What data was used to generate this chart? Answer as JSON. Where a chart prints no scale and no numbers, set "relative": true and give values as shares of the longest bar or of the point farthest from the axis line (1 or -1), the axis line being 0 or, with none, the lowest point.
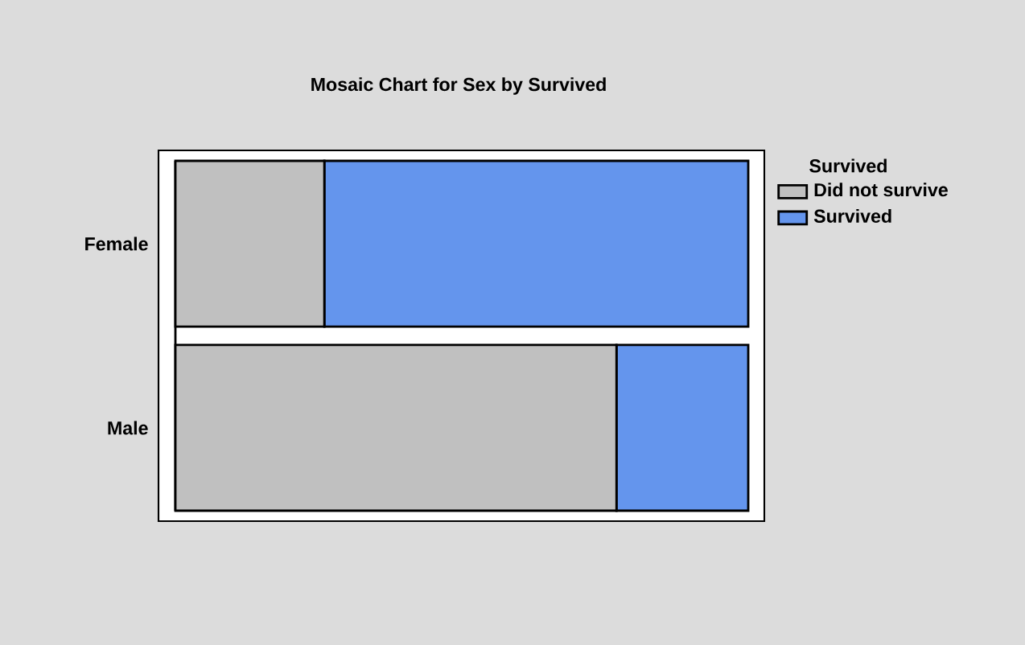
{
  "chart_data": {
    "type": "bar",
    "orientation": "horizontal",
    "stacked": true,
    "relative": true,
    "title": "Mosaic Chart for Sex by Survived",
    "legend_title": "Survived",
    "categories": [
      "Female",
      "Male"
    ],
    "series": [
      {
        "name": "Did not survive",
        "color": "#c0c0c0",
        "values": [
          0.26,
          0.77
        ]
      },
      {
        "name": "Survived",
        "color": "#6495ed",
        "values": [
          0.74,
          0.23
        ]
      }
    ],
    "legend": "top right"
  }
}
